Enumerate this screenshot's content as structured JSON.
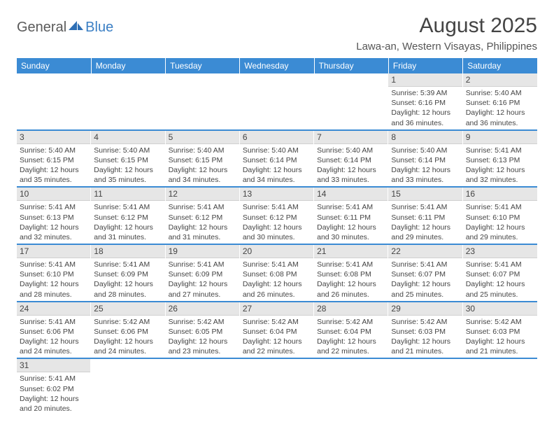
{
  "brand": {
    "name1": "General",
    "name2": "Blue"
  },
  "title": "August 2025",
  "subtitle": "Lawa-an, Western Visayas, Philippines",
  "colors": {
    "header_bg": "#3b8bd4",
    "header_text": "#ffffff",
    "daynum_bg": "#e6e6e6",
    "text": "#444444",
    "brand_gray": "#5a5a5a",
    "brand_blue": "#3b7fc4"
  },
  "day_labels": [
    "Sunday",
    "Monday",
    "Tuesday",
    "Wednesday",
    "Thursday",
    "Friday",
    "Saturday"
  ],
  "weeks": [
    [
      null,
      null,
      null,
      null,
      null,
      {
        "n": "1",
        "sr": "5:39 AM",
        "ss": "6:16 PM",
        "dl": "12 hours and 36 minutes."
      },
      {
        "n": "2",
        "sr": "5:40 AM",
        "ss": "6:16 PM",
        "dl": "12 hours and 36 minutes."
      }
    ],
    [
      {
        "n": "3",
        "sr": "5:40 AM",
        "ss": "6:15 PM",
        "dl": "12 hours and 35 minutes."
      },
      {
        "n": "4",
        "sr": "5:40 AM",
        "ss": "6:15 PM",
        "dl": "12 hours and 35 minutes."
      },
      {
        "n": "5",
        "sr": "5:40 AM",
        "ss": "6:15 PM",
        "dl": "12 hours and 34 minutes."
      },
      {
        "n": "6",
        "sr": "5:40 AM",
        "ss": "6:14 PM",
        "dl": "12 hours and 34 minutes."
      },
      {
        "n": "7",
        "sr": "5:40 AM",
        "ss": "6:14 PM",
        "dl": "12 hours and 33 minutes."
      },
      {
        "n": "8",
        "sr": "5:40 AM",
        "ss": "6:14 PM",
        "dl": "12 hours and 33 minutes."
      },
      {
        "n": "9",
        "sr": "5:41 AM",
        "ss": "6:13 PM",
        "dl": "12 hours and 32 minutes."
      }
    ],
    [
      {
        "n": "10",
        "sr": "5:41 AM",
        "ss": "6:13 PM",
        "dl": "12 hours and 32 minutes."
      },
      {
        "n": "11",
        "sr": "5:41 AM",
        "ss": "6:12 PM",
        "dl": "12 hours and 31 minutes."
      },
      {
        "n": "12",
        "sr": "5:41 AM",
        "ss": "6:12 PM",
        "dl": "12 hours and 31 minutes."
      },
      {
        "n": "13",
        "sr": "5:41 AM",
        "ss": "6:12 PM",
        "dl": "12 hours and 30 minutes."
      },
      {
        "n": "14",
        "sr": "5:41 AM",
        "ss": "6:11 PM",
        "dl": "12 hours and 30 minutes."
      },
      {
        "n": "15",
        "sr": "5:41 AM",
        "ss": "6:11 PM",
        "dl": "12 hours and 29 minutes."
      },
      {
        "n": "16",
        "sr": "5:41 AM",
        "ss": "6:10 PM",
        "dl": "12 hours and 29 minutes."
      }
    ],
    [
      {
        "n": "17",
        "sr": "5:41 AM",
        "ss": "6:10 PM",
        "dl": "12 hours and 28 minutes."
      },
      {
        "n": "18",
        "sr": "5:41 AM",
        "ss": "6:09 PM",
        "dl": "12 hours and 28 minutes."
      },
      {
        "n": "19",
        "sr": "5:41 AM",
        "ss": "6:09 PM",
        "dl": "12 hours and 27 minutes."
      },
      {
        "n": "20",
        "sr": "5:41 AM",
        "ss": "6:08 PM",
        "dl": "12 hours and 26 minutes."
      },
      {
        "n": "21",
        "sr": "5:41 AM",
        "ss": "6:08 PM",
        "dl": "12 hours and 26 minutes."
      },
      {
        "n": "22",
        "sr": "5:41 AM",
        "ss": "6:07 PM",
        "dl": "12 hours and 25 minutes."
      },
      {
        "n": "23",
        "sr": "5:41 AM",
        "ss": "6:07 PM",
        "dl": "12 hours and 25 minutes."
      }
    ],
    [
      {
        "n": "24",
        "sr": "5:41 AM",
        "ss": "6:06 PM",
        "dl": "12 hours and 24 minutes."
      },
      {
        "n": "25",
        "sr": "5:42 AM",
        "ss": "6:06 PM",
        "dl": "12 hours and 24 minutes."
      },
      {
        "n": "26",
        "sr": "5:42 AM",
        "ss": "6:05 PM",
        "dl": "12 hours and 23 minutes."
      },
      {
        "n": "27",
        "sr": "5:42 AM",
        "ss": "6:04 PM",
        "dl": "12 hours and 22 minutes."
      },
      {
        "n": "28",
        "sr": "5:42 AM",
        "ss": "6:04 PM",
        "dl": "12 hours and 22 minutes."
      },
      {
        "n": "29",
        "sr": "5:42 AM",
        "ss": "6:03 PM",
        "dl": "12 hours and 21 minutes."
      },
      {
        "n": "30",
        "sr": "5:42 AM",
        "ss": "6:03 PM",
        "dl": "12 hours and 21 minutes."
      }
    ],
    [
      {
        "n": "31",
        "sr": "5:41 AM",
        "ss": "6:02 PM",
        "dl": "12 hours and 20 minutes."
      },
      null,
      null,
      null,
      null,
      null,
      null
    ]
  ],
  "labels": {
    "sunrise": "Sunrise:",
    "sunset": "Sunset:",
    "daylight": "Daylight:"
  }
}
